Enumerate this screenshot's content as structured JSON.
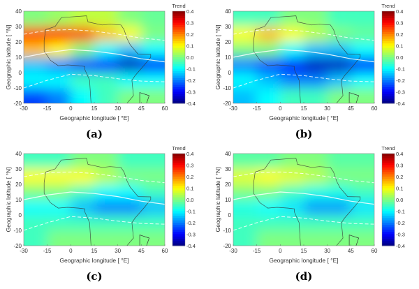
{
  "chart_data": [
    {
      "type": "heatmap",
      "panel_label": "(a)",
      "xlabel": "Geographic longitude [ °E]",
      "ylabel": "Geographic latitude [ °N]",
      "colorbar_title": "Trend",
      "xlim": [
        -30,
        60
      ],
      "ylim": [
        -20,
        40
      ],
      "xticks": [
        "-30",
        "-15",
        "0",
        "15",
        "30",
        "45",
        "60"
      ],
      "yticks": [
        "40",
        "30",
        "20",
        "10",
        "0",
        "-10",
        "-20"
      ],
      "colorbar_ticks": [
        "0.4",
        "0.3",
        "0.2",
        "0.1",
        "0.0",
        "-0.1",
        "-0.2",
        "-0.3",
        "-0.4"
      ],
      "clim": [
        -0.4,
        0.4
      ],
      "colormap": "jet",
      "grid_lon": [
        -22.5,
        -7.5,
        7.5,
        22.5,
        37.5,
        52.5
      ],
      "grid_lat": [
        35,
        25,
        15,
        5,
        -5,
        -15
      ],
      "values": [
        [
          0.0,
          0.02,
          0.05,
          0.05,
          0.0,
          -0.02
        ],
        [
          0.25,
          0.3,
          0.25,
          0.15,
          0.1,
          0.0
        ],
        [
          0.15,
          0.1,
          0.0,
          -0.1,
          -0.15,
          -0.1
        ],
        [
          -0.15,
          -0.2,
          -0.25,
          -0.3,
          -0.35,
          -0.3
        ],
        [
          -0.1,
          -0.1,
          -0.05,
          -0.05,
          -0.1,
          -0.1
        ],
        [
          -0.25,
          -0.2,
          -0.1,
          -0.05,
          0.0,
          0.0
        ]
      ]
    },
    {
      "type": "heatmap",
      "panel_label": "(b)",
      "xlabel": "Geographic longitude [ °E]",
      "ylabel": "Geographic latitude [ °N]",
      "colorbar_title": "Trend",
      "xlim": [
        -30,
        60
      ],
      "ylim": [
        -20,
        40
      ],
      "xticks": [
        "-30",
        "-15",
        "0",
        "15",
        "30",
        "45",
        "60"
      ],
      "yticks": [
        "40",
        "30",
        "20",
        "10",
        "0",
        "-10",
        "-20"
      ],
      "colorbar_ticks": [
        "0.4",
        "0.3",
        "0.2",
        "0.1",
        "0.0",
        "-0.1",
        "-0.2",
        "-0.3",
        "-0.4"
      ],
      "clim": [
        -0.4,
        0.4
      ],
      "colormap": "jet",
      "grid_lon": [
        -22.5,
        -7.5,
        7.5,
        22.5,
        37.5,
        52.5
      ],
      "grid_lat": [
        35,
        25,
        15,
        5,
        -5,
        -15
      ],
      "values": [
        [
          -0.05,
          -0.05,
          0.0,
          0.0,
          -0.05,
          -0.05
        ],
        [
          0.1,
          0.15,
          0.1,
          0.05,
          0.0,
          -0.02
        ],
        [
          0.0,
          0.0,
          -0.1,
          -0.15,
          -0.15,
          -0.1
        ],
        [
          -0.2,
          -0.25,
          -0.3,
          -0.35,
          -0.35,
          -0.3
        ],
        [
          -0.1,
          -0.15,
          -0.2,
          -0.2,
          -0.15,
          -0.1
        ],
        [
          -0.15,
          -0.1,
          -0.05,
          -0.05,
          0.0,
          0.0
        ]
      ]
    },
    {
      "type": "heatmap",
      "panel_label": "(c)",
      "xlabel": "Geographic longitude [ °E]",
      "ylabel": "Geographic latitude [ °N]",
      "colorbar_title": "Trend",
      "xlim": [
        -30,
        60
      ],
      "ylim": [
        -20,
        40
      ],
      "xticks": [
        "-30",
        "-15",
        "0",
        "15",
        "30",
        "45",
        "60"
      ],
      "yticks": [
        "40",
        "30",
        "20",
        "10",
        "0",
        "-10",
        "-20"
      ],
      "colorbar_ticks": [
        "0.4",
        "0.3",
        "0.2",
        "0.1",
        "0.0",
        "-0.1",
        "-0.2",
        "-0.3",
        "-0.4"
      ],
      "clim": [
        -0.4,
        0.4
      ],
      "colormap": "jet",
      "grid_lon": [
        -22.5,
        -7.5,
        7.5,
        22.5,
        37.5,
        52.5
      ],
      "grid_lat": [
        35,
        25,
        15,
        5,
        -5,
        -15
      ],
      "values": [
        [
          -0.05,
          -0.05,
          0.0,
          0.0,
          -0.05,
          -0.05
        ],
        [
          0.1,
          0.1,
          0.1,
          0.05,
          0.0,
          0.0
        ],
        [
          0.0,
          0.0,
          -0.05,
          -0.1,
          -0.1,
          -0.05
        ],
        [
          -0.1,
          -0.1,
          -0.15,
          -0.2,
          -0.2,
          -0.15
        ],
        [
          -0.05,
          -0.05,
          -0.05,
          -0.05,
          -0.05,
          -0.05
        ],
        [
          -0.05,
          0.0,
          0.0,
          0.0,
          0.0,
          0.0
        ]
      ]
    },
    {
      "type": "heatmap",
      "panel_label": "(d)",
      "xlabel": "Geographic longitude [ °E]",
      "ylabel": "Geographic latitude [ °N]",
      "colorbar_title": "Trend",
      "xlim": [
        -30,
        60
      ],
      "ylim": [
        -20,
        40
      ],
      "xticks": [
        "-30",
        "-15",
        "0",
        "15",
        "30",
        "45",
        "60"
      ],
      "yticks": [
        "40",
        "30",
        "20",
        "10",
        "0",
        "-10",
        "-20"
      ],
      "colorbar_ticks": [
        "0.4",
        "0.3",
        "0.2",
        "0.1",
        "0.0",
        "-0.1",
        "-0.2",
        "-0.3",
        "-0.4"
      ],
      "clim": [
        -0.4,
        0.4
      ],
      "colormap": "jet",
      "grid_lon": [
        -22.5,
        -7.5,
        7.5,
        22.5,
        37.5,
        52.5
      ],
      "grid_lat": [
        35,
        25,
        15,
        5,
        -5,
        -15
      ],
      "values": [
        [
          -0.03,
          -0.03,
          0.0,
          0.0,
          -0.03,
          -0.03
        ],
        [
          0.08,
          0.1,
          0.08,
          0.05,
          0.0,
          0.0
        ],
        [
          0.0,
          0.0,
          -0.05,
          -0.08,
          -0.08,
          -0.05
        ],
        [
          -0.08,
          -0.1,
          -0.12,
          -0.18,
          -0.18,
          -0.12
        ],
        [
          -0.05,
          -0.05,
          -0.05,
          -0.05,
          -0.05,
          -0.05
        ],
        [
          -0.05,
          0.0,
          0.0,
          0.0,
          0.0,
          0.0
        ]
      ]
    }
  ]
}
